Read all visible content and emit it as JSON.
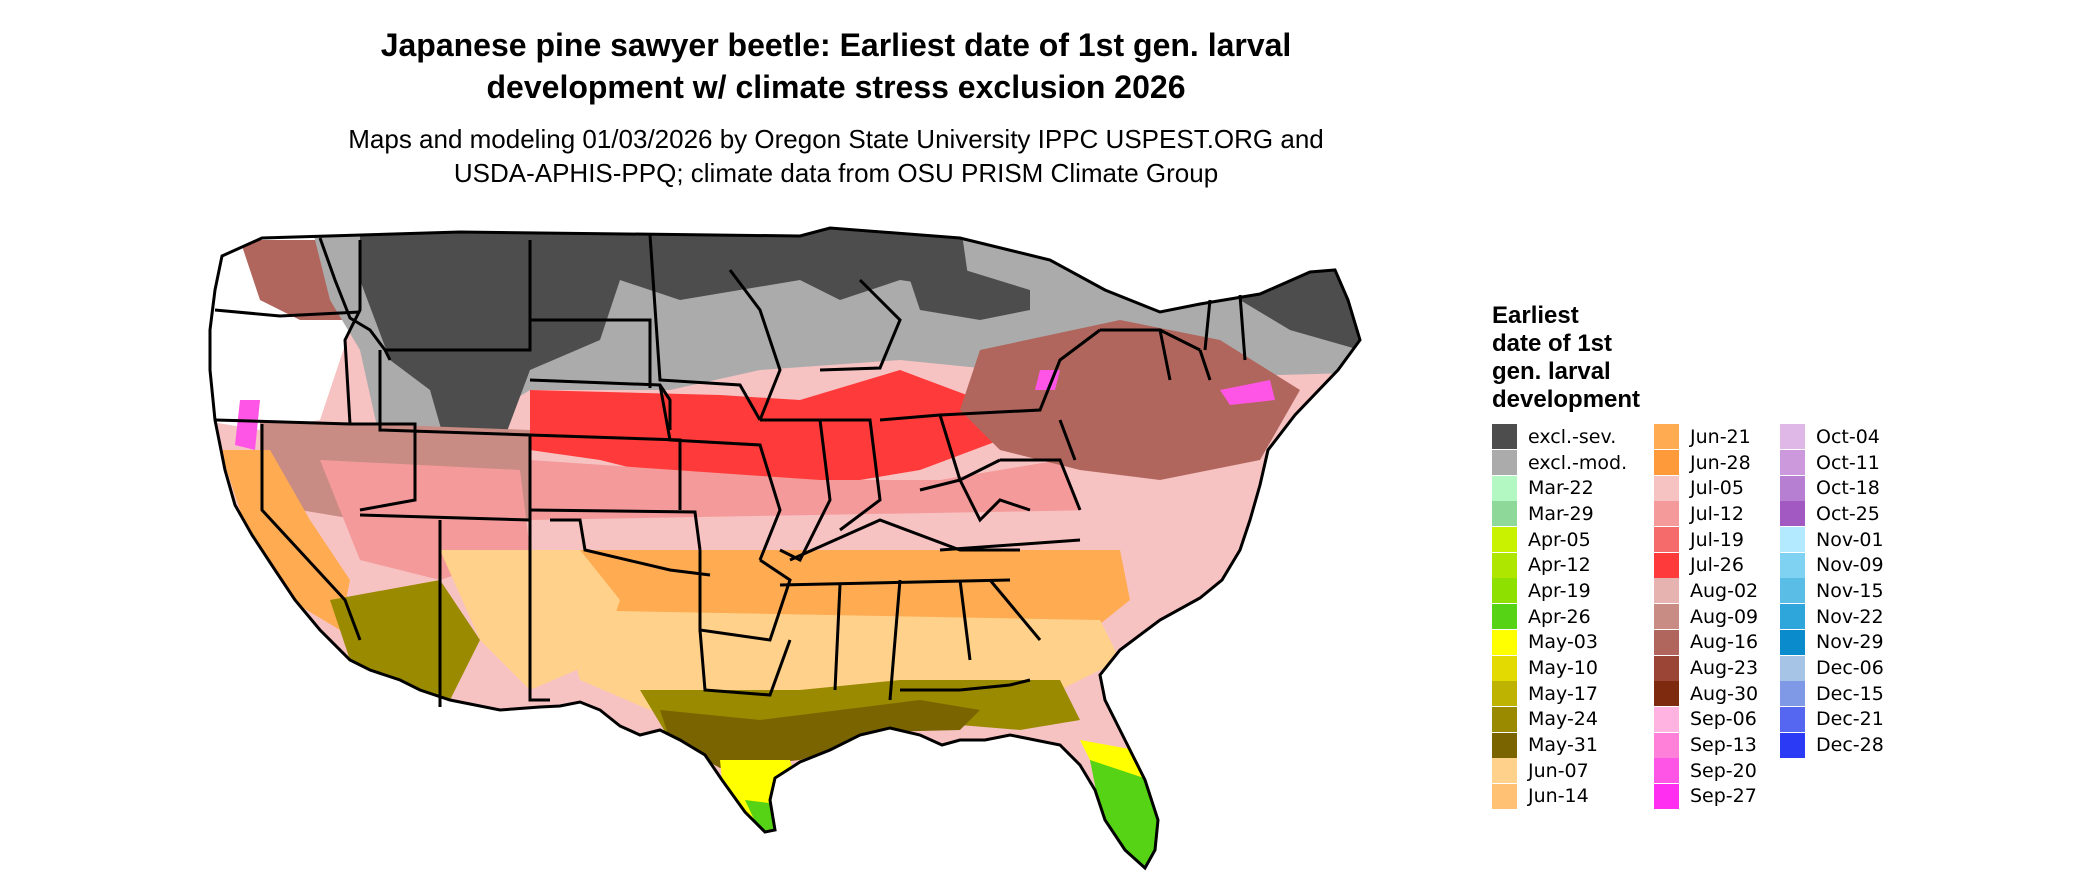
{
  "title_line1": "Japanese pine sawyer beetle: Earliest date of 1st gen. larval",
  "title_line2": "development w/ climate stress exclusion 2026",
  "subtitle_line1": "Maps and modeling 01/03/2026 by Oregon State University IPPC USPEST.ORG and",
  "subtitle_line2": "USDA-APHIS-PPQ; climate data from OSU PRISM Climate Group",
  "legend": {
    "title_lines": [
      "Earliest",
      "date of 1st",
      "gen. larval",
      "development"
    ],
    "columns": [
      [
        {
          "label": "excl.-sev.",
          "color": "#4d4d4d"
        },
        {
          "label": "excl.-mod.",
          "color": "#ababab"
        },
        {
          "label": "Mar-22",
          "color": "#b3f7c2"
        },
        {
          "label": "Mar-29",
          "color": "#8ed99a"
        },
        {
          "label": "Apr-05",
          "color": "#c8f200"
        },
        {
          "label": "Apr-12",
          "color": "#aee600"
        },
        {
          "label": "Apr-19",
          "color": "#8ee000"
        },
        {
          "label": "Apr-26",
          "color": "#55d314"
        },
        {
          "label": "May-03",
          "color": "#ffff00"
        },
        {
          "label": "May-10",
          "color": "#e2da00"
        },
        {
          "label": "May-17",
          "color": "#bdb300"
        },
        {
          "label": "May-24",
          "color": "#9a8a00"
        },
        {
          "label": "May-31",
          "color": "#7a6400"
        },
        {
          "label": "Jun-07",
          "color": "#ffd18a"
        },
        {
          "label": "Jun-14",
          "color": "#ffc275"
        }
      ],
      [
        {
          "label": "Jun-21",
          "color": "#ffab52"
        },
        {
          "label": "Jun-28",
          "color": "#ff9a3a"
        },
        {
          "label": "Jul-05",
          "color": "#f7c2c2"
        },
        {
          "label": "Jul-12",
          "color": "#f49a9a"
        },
        {
          "label": "Jul-19",
          "color": "#f56b6b"
        },
        {
          "label": "Jul-26",
          "color": "#ff3a3a"
        },
        {
          "label": "Aug-02",
          "color": "#e6b3b0"
        },
        {
          "label": "Aug-09",
          "color": "#c98c84"
        },
        {
          "label": "Aug-16",
          "color": "#b0665c"
        },
        {
          "label": "Aug-23",
          "color": "#9a4535"
        },
        {
          "label": "Aug-30",
          "color": "#7d2a0e"
        },
        {
          "label": "Sep-06",
          "color": "#ffb3e0"
        },
        {
          "label": "Sep-13",
          "color": "#ff80d9"
        },
        {
          "label": "Sep-20",
          "color": "#ff55e6"
        },
        {
          "label": "Sep-27",
          "color": "#ff2ef0"
        }
      ],
      [
        {
          "label": "Oct-04",
          "color": "#e0b8e8"
        },
        {
          "label": "Oct-11",
          "color": "#cc99dd"
        },
        {
          "label": "Oct-18",
          "color": "#b77fd2"
        },
        {
          "label": "Oct-25",
          "color": "#a359c2"
        },
        {
          "label": "Nov-01",
          "color": "#b3eaff"
        },
        {
          "label": "Nov-09",
          "color": "#80d2f2"
        },
        {
          "label": "Nov-15",
          "color": "#59bde6"
        },
        {
          "label": "Nov-22",
          "color": "#2fa6db"
        },
        {
          "label": "Nov-29",
          "color": "#0a8ccc"
        },
        {
          "label": "Dec-06",
          "color": "#a6c4e6"
        },
        {
          "label": "Dec-15",
          "color": "#7f99e6"
        },
        {
          "label": "Dec-21",
          "color": "#5566f0"
        },
        {
          "label": "Dec-28",
          "color": "#2a3af5"
        }
      ]
    ]
  },
  "map_zone_colors": {
    "excl_severe": "#4d4d4d",
    "excl_moderate": "#ababab",
    "apr": "#55d314",
    "may_yellow": "#ffff00",
    "may_olive": "#9a8a00",
    "may_dark": "#7a6400",
    "jun_light": "#ffd18a",
    "jun_orange": "#ffab52",
    "jul_pink": "#f7c2c2",
    "jul_mid": "#f49a9a",
    "jul_red": "#ff3a3a",
    "aug_brown": "#b0665c",
    "aug_light": "#c98c84",
    "sep_magenta": "#ff55e6",
    "white": "#ffffff"
  }
}
